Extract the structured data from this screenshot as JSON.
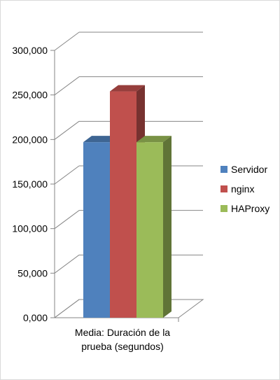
{
  "chart_data": {
    "type": "bar",
    "categories": [
      "Media: Duración de la prueba (segundos)"
    ],
    "category_lines": [
      "Media: Duración de la",
      "prueba (segundos)"
    ],
    "series": [
      {
        "name": "Servidor",
        "values": [
          197
        ],
        "color": "#4f81bd"
      },
      {
        "name": "nginx",
        "values": [
          254
        ],
        "color": "#c0504d"
      },
      {
        "name": "HAProxy",
        "values": [
          197
        ],
        "color": "#9bbb59"
      }
    ],
    "ylim": [
      0,
      300
    ],
    "yticks": [
      0,
      50,
      100,
      150,
      200,
      250,
      300
    ],
    "ytick_labels": [
      "0,000",
      "50,000",
      "100,000",
      "150,000",
      "200,000",
      "250,000",
      "300,000"
    ],
    "grid": true,
    "legend_position": "right",
    "title": "",
    "xlabel": "",
    "ylabel": ""
  }
}
